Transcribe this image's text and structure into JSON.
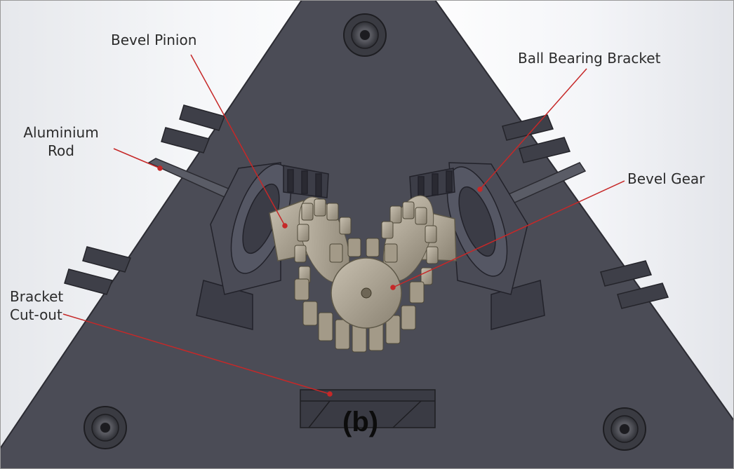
{
  "labels": {
    "bevel_pinion": "Bevel Pinion",
    "ball_bearing_bracket": "Ball Bearing Bracket",
    "aluminium_rod_line1": "Aluminium",
    "aluminium_rod_line2": "Rod",
    "bevel_gear": "Bevel Gear",
    "bracket_cutout_line1": "Bracket",
    "bracket_cutout_line2": "Cut-out",
    "panel": "(b)"
  },
  "colors": {
    "plate": "#4a4b55",
    "leader_line": "#c62828",
    "gear": "#a79e8c",
    "bracket": "#3c3d47"
  }
}
